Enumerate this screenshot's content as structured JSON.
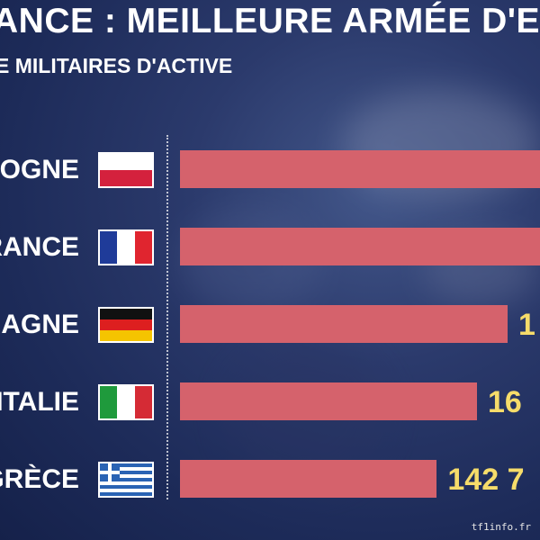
{
  "title": "ANCE : MEILLEURE ARMÉE D'EU",
  "subtitle": "E MILITAIRES D'ACTIVE",
  "source": "tf1info.fr",
  "colors": {
    "bar": "#d5626c",
    "value": "#f6dc6a",
    "background": "#1d2b59"
  },
  "chart_data": {
    "type": "bar",
    "orientation": "horizontal",
    "title": "ANCE : MEILLEURE ARMÉE D'EU",
    "subtitle": "E MILITAIRES D'ACTIVE",
    "categories": [
      "LOGNE",
      "RANCE",
      "MAGNE",
      "ITALIE",
      "GRÈCE"
    ],
    "flags": [
      "poland-flag-icon",
      "france-flag-icon",
      "germany-flag-icon",
      "italy-flag-icon",
      "greece-flag-icon"
    ],
    "values": [
      210000,
      210000,
      182000,
      165000,
      142700
    ],
    "value_labels": [
      "",
      "",
      "1",
      "16",
      "142 7"
    ],
    "xlim": [
      0,
      210000
    ]
  }
}
